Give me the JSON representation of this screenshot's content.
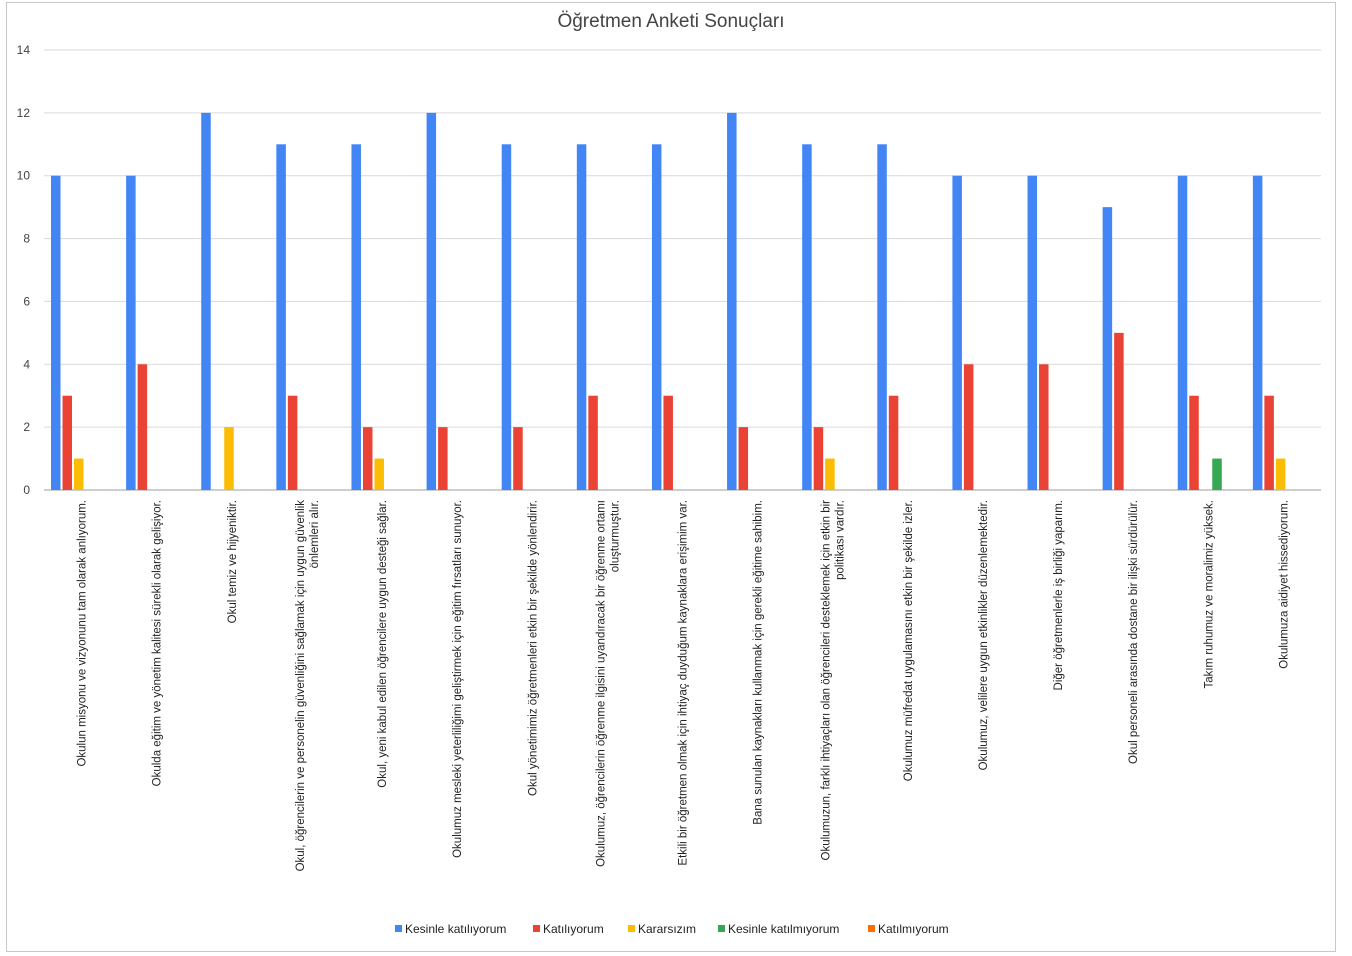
{
  "chart_data": {
    "type": "bar",
    "title": "Öğretmen Anketi Sonuçları",
    "xlabel": "",
    "ylabel": "",
    "ylim": [
      0,
      14
    ],
    "yticks": [
      0,
      2,
      4,
      6,
      8,
      10,
      12,
      14
    ],
    "grid": true,
    "legend_position": "bottom",
    "categories": [
      [
        "Okulun misyonu ve vizyonunu tam olarak anlıyorum."
      ],
      [
        "Okulda eğitim ve yönetim kalitesi sürekli olarak gelişiyor."
      ],
      [
        "Okul temiz ve hijyeniktir."
      ],
      [
        "Okul, öğrencilerin ve personelin güvenliğini sağlamak için uygun güvenlik",
        "önlemleri alır."
      ],
      [
        "Okul, yeni kabul edilen öğrencilere uygun desteği sağlar."
      ],
      [
        "Okulumuz mesleki yeterliliğimi geliştirmek için eğitim fırsatları sunuyor."
      ],
      [
        "Okul yönetimimiz öğretmenleri etkin bir şekilde yönlendirir."
      ],
      [
        "Okulumuz, öğrencilerin öğrenme ilgisini uyandıracak bir öğrenme ortamı",
        "oluşturmuştur."
      ],
      [
        "Etkili bir öğretmen olmak için ihtiyaç duyduğum kaynaklara erişimim var."
      ],
      [
        "Bana sunulan kaynakları kullanmak için gerekli eğitime sahibim."
      ],
      [
        "Okulumuzun, farklı ihtiyaçları olan öğrencileri desteklemek için etkin bir",
        "politikası vardır."
      ],
      [
        "Okulumuz müfredat uygulamasını etkin bir şekilde izler."
      ],
      [
        "Okulumuz, velilere uygun etkinlikler düzenlemektedir."
      ],
      [
        "Diğer öğretmenlerle iş birliği yaparım."
      ],
      [
        "Okul personeli arasında dostane bir ilişki sürdürülür."
      ],
      [
        "Takım ruhumuz ve moralimiz yüksek."
      ],
      [
        "Okulumuza aidiyet hissediyorum."
      ]
    ],
    "series": [
      {
        "name": "Kesinle katılıyorum",
        "color": "#4285f4",
        "values": [
          10,
          10,
          12,
          11,
          11,
          12,
          11,
          11,
          11,
          12,
          11,
          11,
          10,
          10,
          9,
          10,
          10
        ]
      },
      {
        "name": "Katılıyorum",
        "color": "#ea4335",
        "values": [
          3,
          4,
          0,
          3,
          2,
          2,
          2,
          3,
          3,
          2,
          2,
          3,
          4,
          4,
          5,
          3,
          3
        ]
      },
      {
        "name": "Kararsızım",
        "color": "#fbbc04",
        "values": [
          1,
          0,
          2,
          0,
          1,
          0,
          0,
          0,
          0,
          0,
          1,
          0,
          0,
          0,
          0,
          0,
          1
        ]
      },
      {
        "name": "Kesinle katılmıyorum",
        "color": "#34a853",
        "values": [
          0,
          0,
          0,
          0,
          0,
          0,
          0,
          0,
          0,
          0,
          0,
          0,
          0,
          0,
          0,
          1,
          0
        ]
      },
      {
        "name": "Katılmıyorum",
        "color": "#ff6d01",
        "values": [
          0,
          0,
          0,
          0,
          0,
          0,
          0,
          0,
          0,
          0,
          0,
          0,
          0,
          0,
          0,
          0,
          0
        ]
      }
    ]
  }
}
